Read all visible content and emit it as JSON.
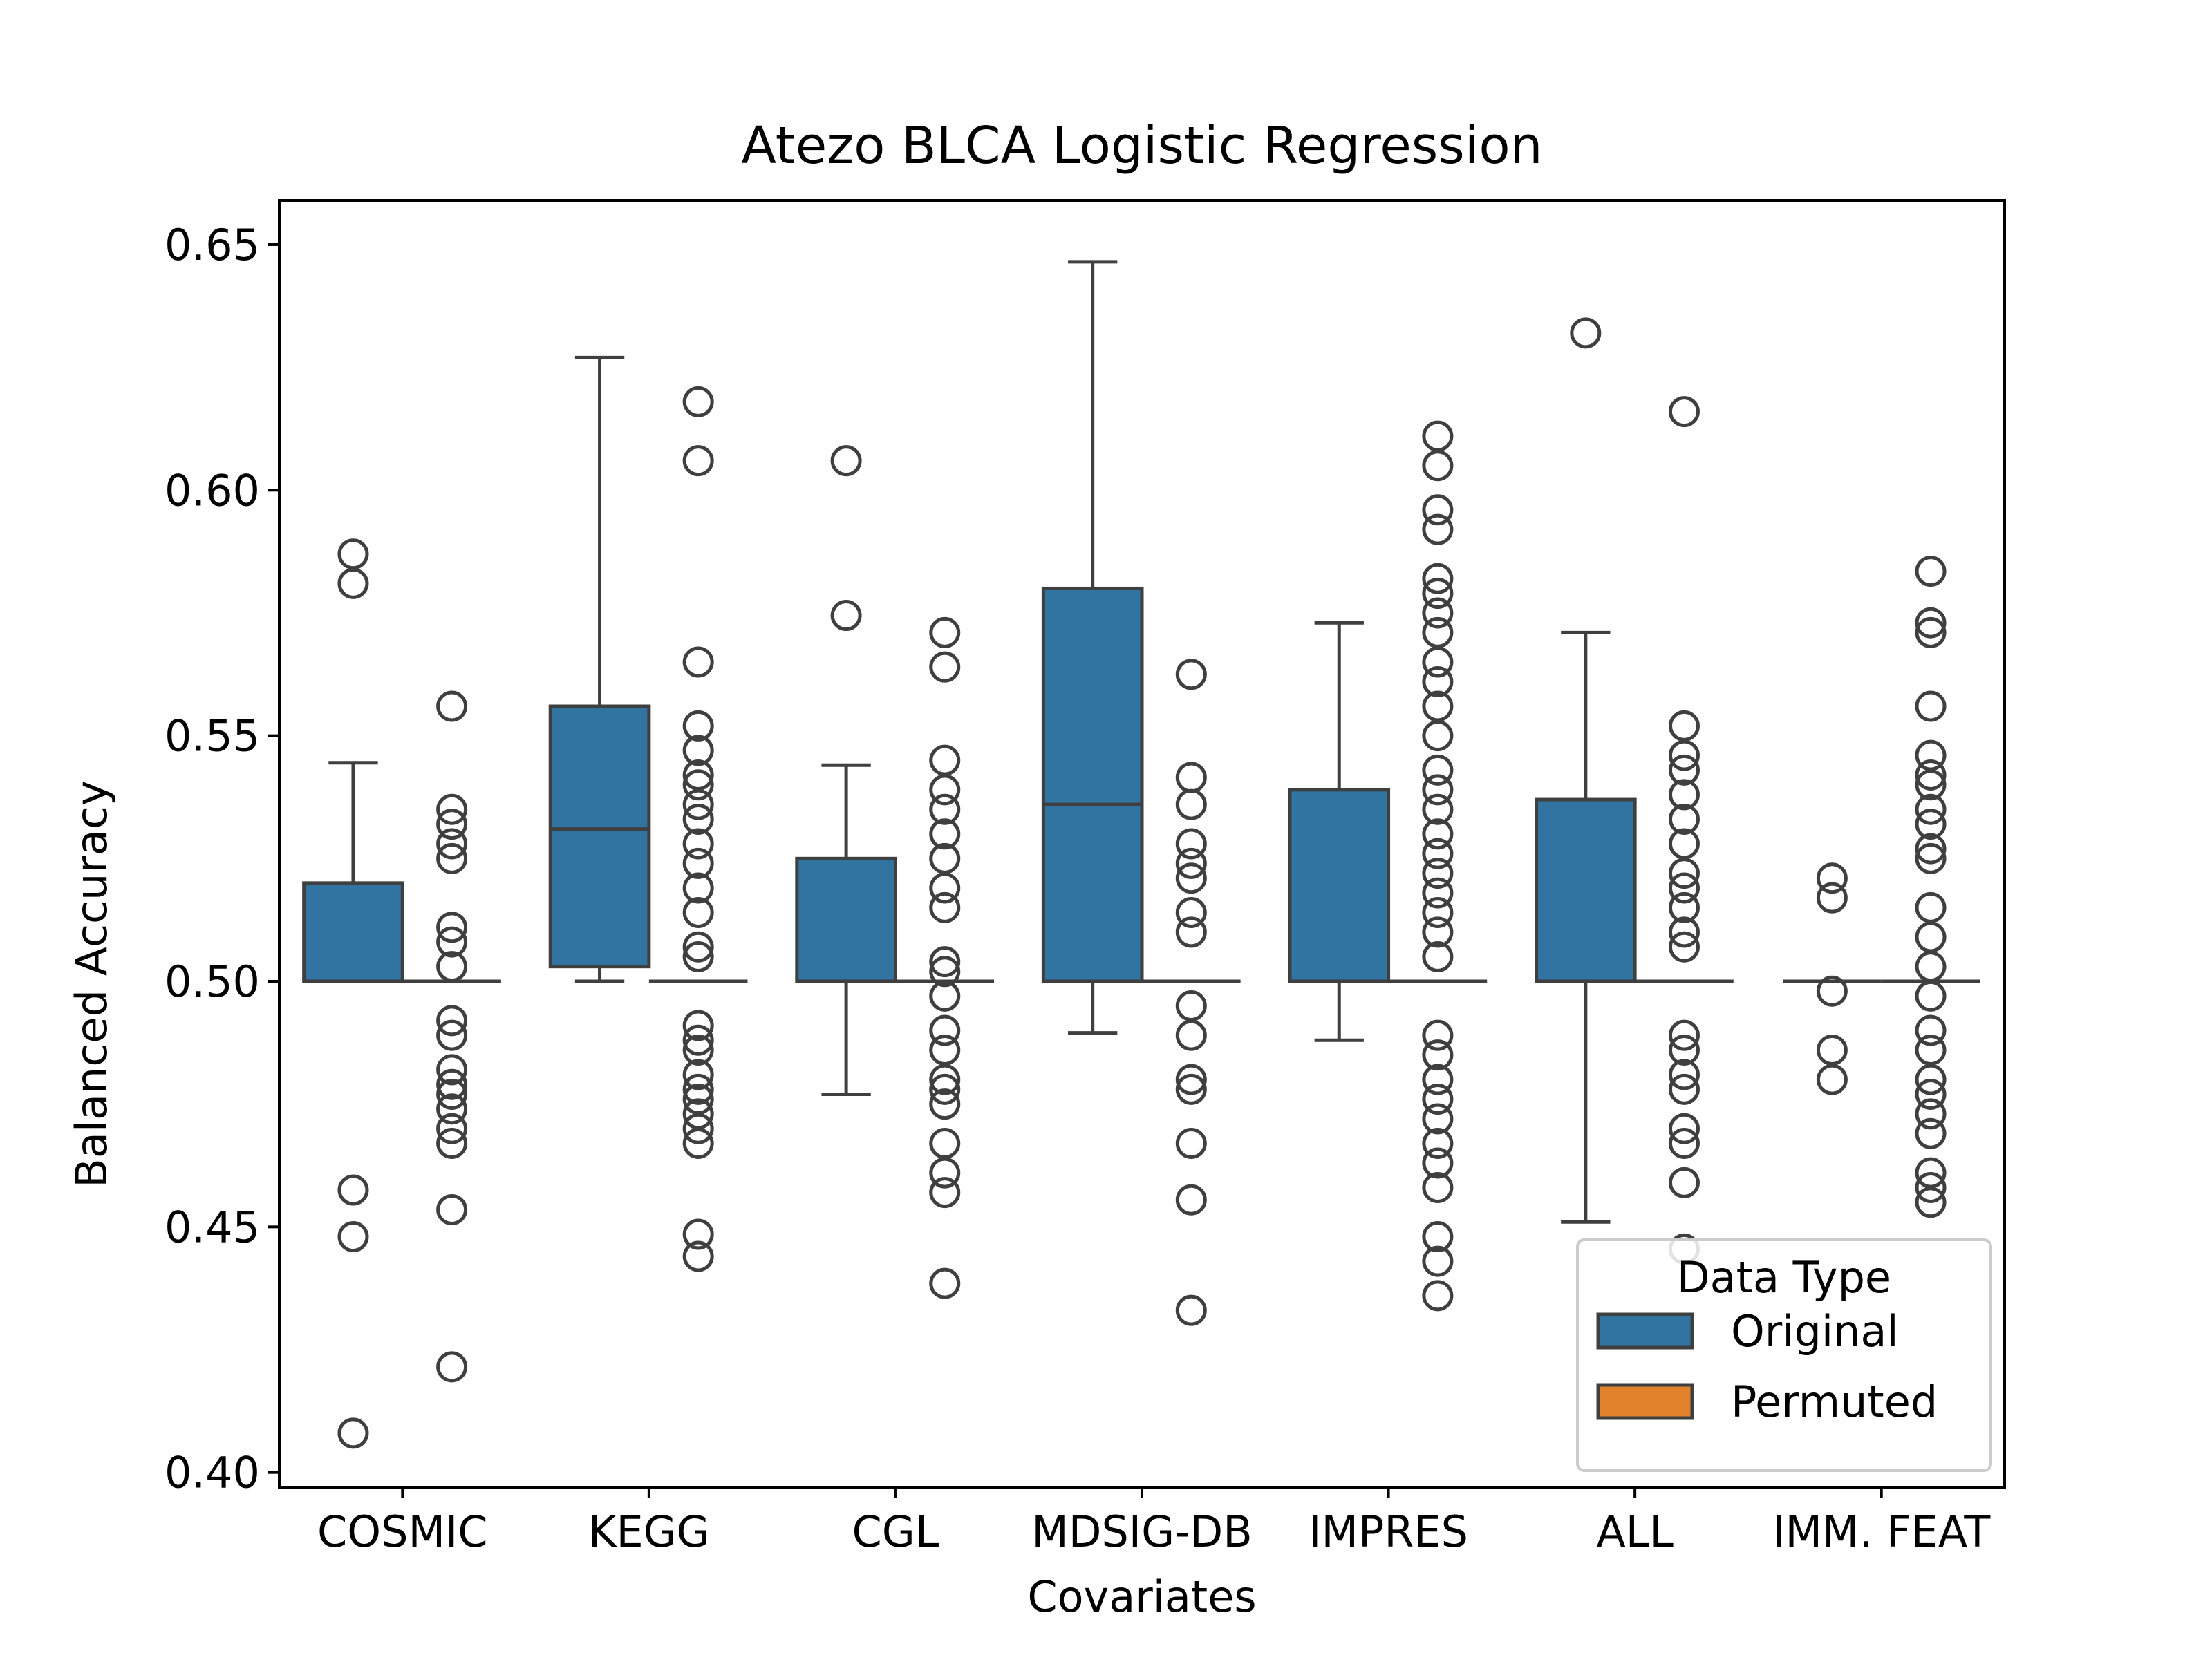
{
  "chart_data": {
    "type": "box",
    "title": "Atezo  BLCA  Logistic Regression",
    "xlabel": "Covariates",
    "ylabel": "Balanced Accuracy",
    "ylim": [
      0.397,
      0.659
    ],
    "yticks": [
      "0.40",
      "0.45",
      "0.50",
      "0.55",
      "0.60",
      "0.65"
    ],
    "ytick_values": [
      0.4,
      0.45,
      0.5,
      0.55,
      0.6,
      0.65
    ],
    "categories": [
      "COSMIC",
      "KEGG",
      "CGL",
      "MDSIG-DB",
      "IMPRES",
      "ALL",
      "IMM. FEAT"
    ],
    "legend": {
      "title": "Data Type",
      "position": "lower-right",
      "items": [
        {
          "label": "Original",
          "color": "#3274a1"
        },
        {
          "label": "Permuted",
          "color": "#e1812c"
        }
      ]
    },
    "series": [
      {
        "name": "Original",
        "color": "#3274a1",
        "boxes": [
          {
            "category": "COSMIC",
            "whisker_low": 0.5,
            "q1": 0.5,
            "median": 0.5,
            "q3": 0.52,
            "whisker_high": 0.5445,
            "outliers": [
              0.587,
              0.581,
              0.4575,
              0.448,
              0.408
            ]
          },
          {
            "category": "KEGG",
            "whisker_low": 0.5,
            "q1": 0.503,
            "median": 0.531,
            "q3": 0.556,
            "whisker_high": 0.627,
            "outliers": []
          },
          {
            "category": "CGL",
            "whisker_low": 0.477,
            "q1": 0.5,
            "median": 0.5,
            "q3": 0.525,
            "whisker_high": 0.544,
            "outliers": [
              0.606,
              0.5745
            ]
          },
          {
            "category": "MDSIG-DB",
            "whisker_low": 0.4895,
            "q1": 0.5,
            "median": 0.536,
            "q3": 0.58,
            "whisker_high": 0.6465,
            "outliers": []
          },
          {
            "category": "IMPRES",
            "whisker_low": 0.488,
            "q1": 0.5,
            "median": 0.5,
            "q3": 0.539,
            "whisker_high": 0.573,
            "outliers": []
          },
          {
            "category": "ALL",
            "whisker_low": 0.451,
            "q1": 0.5,
            "median": 0.5,
            "q3": 0.537,
            "whisker_high": 0.571,
            "outliers": [
              0.632
            ]
          },
          {
            "category": "IMM. FEAT",
            "whisker_low": 0.5,
            "q1": 0.5,
            "median": 0.5,
            "q3": 0.5,
            "whisker_high": 0.5,
            "outliers": [
              0.521,
              0.517,
              0.498,
              0.486,
              0.48
            ]
          }
        ]
      },
      {
        "name": "Permuted",
        "color": "#e1812c",
        "boxes": [
          {
            "category": "COSMIC",
            "whisker_low": 0.5,
            "q1": 0.5,
            "median": 0.5,
            "q3": 0.5,
            "whisker_high": 0.5,
            "outliers": [
              0.556,
              0.535,
              0.532,
              0.528,
              0.525,
              0.511,
              0.508,
              0.503,
              0.492,
              0.489,
              0.482,
              0.479,
              0.477,
              0.474,
              0.47,
              0.467,
              0.4535,
              0.4215
            ]
          },
          {
            "category": "KEGG",
            "whisker_low": 0.5,
            "q1": 0.5,
            "median": 0.5,
            "q3": 0.5,
            "whisker_high": 0.5,
            "outliers": [
              0.618,
              0.606,
              0.565,
              0.552,
              0.547,
              0.542,
              0.54,
              0.536,
              0.533,
              0.528,
              0.524,
              0.519,
              0.514,
              0.507,
              0.505,
              0.491,
              0.488,
              0.486,
              0.481,
              0.478,
              0.476,
              0.473,
              0.47,
              0.467,
              0.4485,
              0.444
            ]
          },
          {
            "category": "CGL",
            "whisker_low": 0.5,
            "q1": 0.5,
            "median": 0.5,
            "q3": 0.5,
            "whisker_high": 0.5,
            "outliers": [
              0.571,
              0.564,
              0.545,
              0.539,
              0.535,
              0.53,
              0.525,
              0.519,
              0.515,
              0.504,
              0.502,
              0.497,
              0.49,
              0.486,
              0.48,
              0.478,
              0.475,
              0.467,
              0.461,
              0.457,
              0.4385
            ]
          },
          {
            "category": "MDSIG-DB",
            "whisker_low": 0.5,
            "q1": 0.5,
            "median": 0.5,
            "q3": 0.5,
            "whisker_high": 0.5,
            "outliers": [
              0.5625,
              0.5415,
              0.536,
              0.528,
              0.524,
              0.521,
              0.514,
              0.51,
              0.495,
              0.489,
              0.48,
              0.478,
              0.467,
              0.4555,
              0.433
            ]
          },
          {
            "category": "IMPRES",
            "whisker_low": 0.5,
            "q1": 0.5,
            "median": 0.5,
            "q3": 0.5,
            "whisker_high": 0.5,
            "outliers": [
              0.611,
              0.605,
              0.596,
              0.592,
              0.582,
              0.579,
              0.575,
              0.571,
              0.565,
              0.561,
              0.556,
              0.55,
              0.543,
              0.539,
              0.535,
              0.53,
              0.526,
              0.522,
              0.518,
              0.514,
              0.51,
              0.505,
              0.489,
              0.485,
              0.48,
              0.476,
              0.472,
              0.467,
              0.463,
              0.458,
              0.448,
              0.443,
              0.436
            ]
          },
          {
            "category": "ALL",
            "whisker_low": 0.5,
            "q1": 0.5,
            "median": 0.5,
            "q3": 0.5,
            "whisker_high": 0.5,
            "outliers": [
              0.616,
              0.552,
              0.546,
              0.543,
              0.538,
              0.533,
              0.528,
              0.522,
              0.519,
              0.515,
              0.51,
              0.507,
              0.489,
              0.486,
              0.481,
              0.478,
              0.47,
              0.467,
              0.459,
              0.4455
            ]
          },
          {
            "category": "IMM. FEAT",
            "whisker_low": 0.5,
            "q1": 0.5,
            "median": 0.5,
            "q3": 0.5,
            "whisker_high": 0.5,
            "outliers": [
              0.5835,
              0.573,
              0.571,
              0.556,
              0.546,
              0.542,
              0.54,
              0.535,
              0.532,
              0.527,
              0.525,
              0.515,
              0.509,
              0.503,
              0.497,
              0.49,
              0.486,
              0.48,
              0.477,
              0.473,
              0.469,
              0.461,
              0.458,
              0.455
            ]
          }
        ]
      }
    ]
  }
}
